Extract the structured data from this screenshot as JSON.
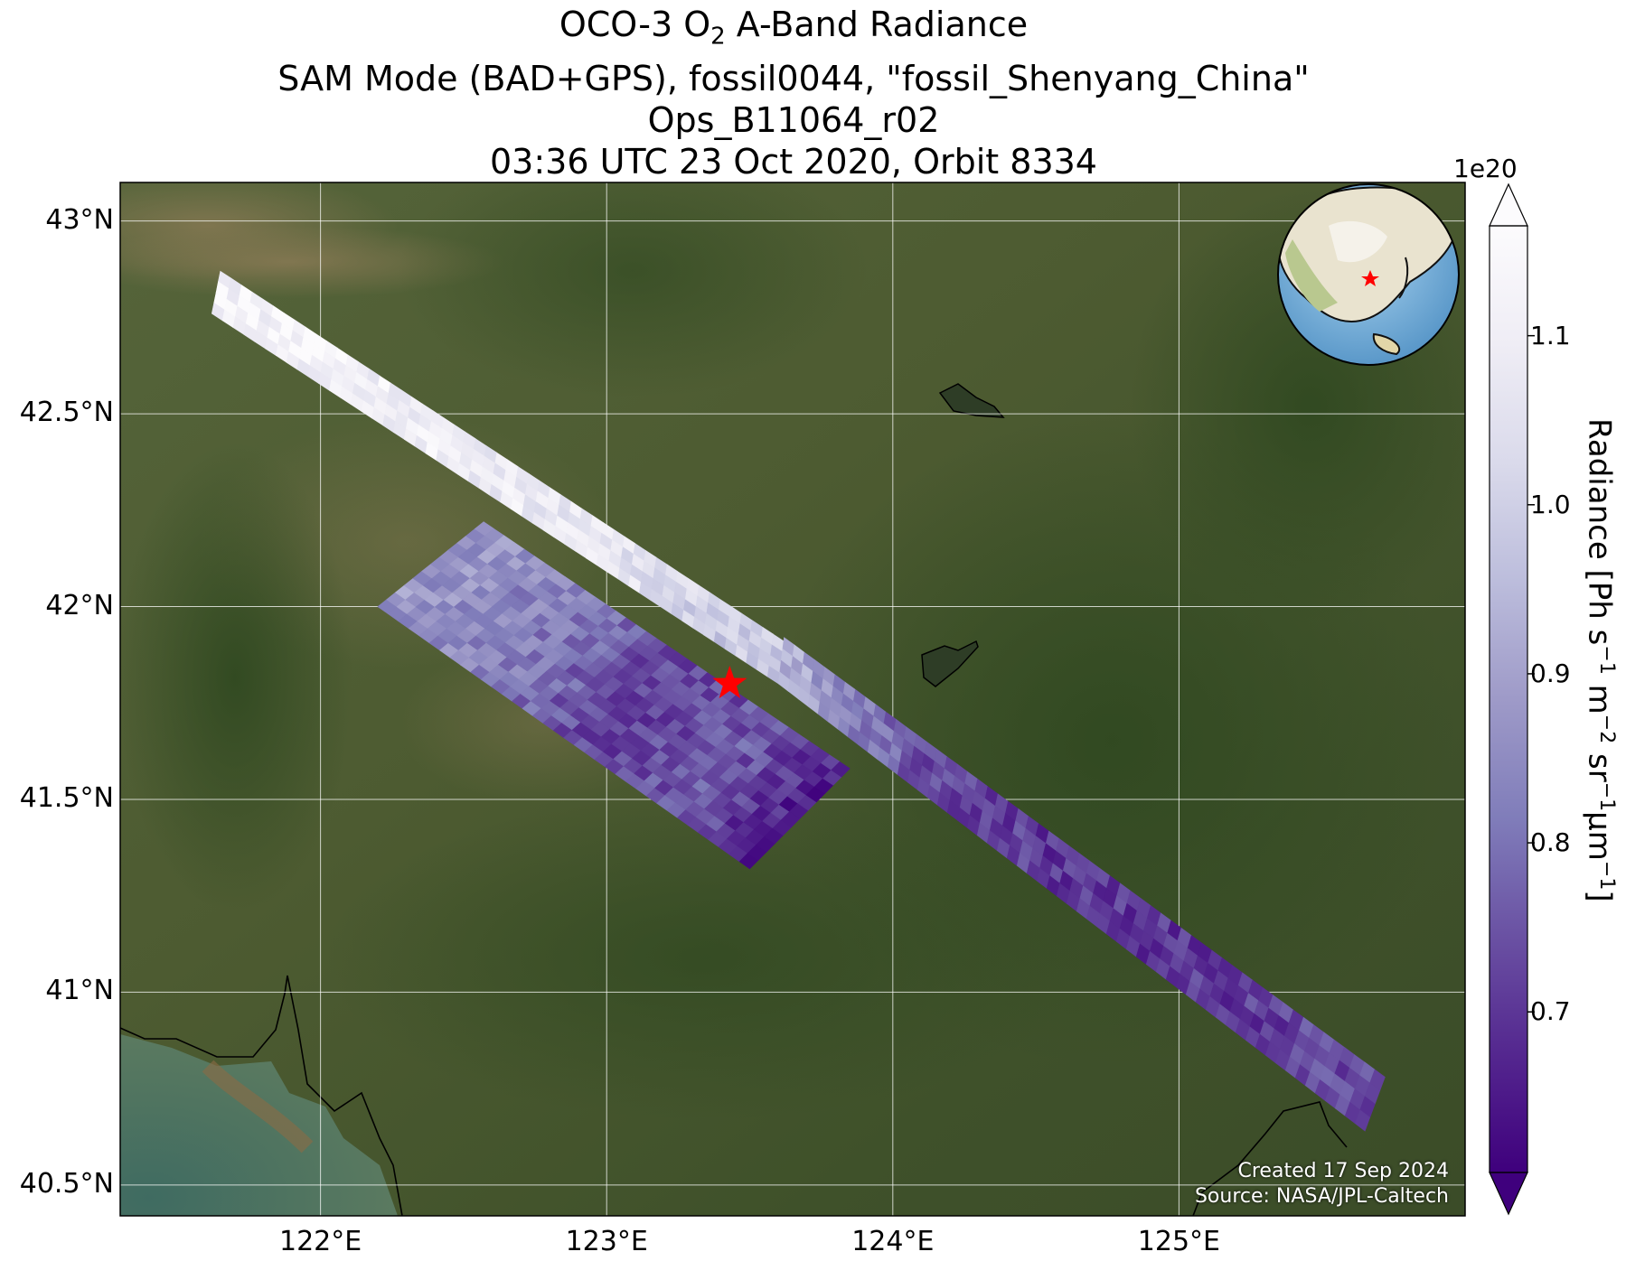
{
  "title": {
    "line1_pre": "OCO-3 O",
    "line1_sub": "2",
    "line1_post": " A-Band Radiance",
    "line2": "SAM Mode (BAD+GPS), fossil0044, \"fossil_Shenyang_China\"",
    "line3": "Ops_B11064_r02",
    "line4": "03:36 UTC 23 Oct 2020, Orbit 8334"
  },
  "map": {
    "lon_range": [
      121.3,
      126.0
    ],
    "lat_range": [
      40.42,
      43.1
    ],
    "lat_ticks": [
      {
        "value": 43.0,
        "label": "43°N"
      },
      {
        "value": 42.5,
        "label": "42.5°N"
      },
      {
        "value": 42.0,
        "label": "42°N"
      },
      {
        "value": 41.5,
        "label": "41.5°N"
      },
      {
        "value": 41.0,
        "label": "41°N"
      },
      {
        "value": 40.5,
        "label": "40.5°N"
      }
    ],
    "lon_ticks": [
      {
        "value": 122,
        "label": "122°E"
      },
      {
        "value": 123,
        "label": "123°E"
      },
      {
        "value": 124,
        "label": "124°E"
      },
      {
        "value": 125,
        "label": "125°E"
      }
    ],
    "gridlines": true,
    "basemap": "satellite imagery",
    "target_marker": {
      "lon": 123.43,
      "lat": 41.8,
      "symbol": "star-icon",
      "color": "#ff0000"
    },
    "inset_globe": {
      "position": "top-right",
      "marker_color": "#ff0000"
    }
  },
  "colorbar": {
    "exponent": "1e20",
    "range": [
      0.605,
      1.165
    ],
    "extend": "both",
    "colormap": "Purples_r",
    "ticks": [
      {
        "value": 1.1,
        "label": "1.1"
      },
      {
        "value": 1.0,
        "label": "1.0"
      },
      {
        "value": 0.9,
        "label": "0.9"
      },
      {
        "value": 0.8,
        "label": "0.8"
      },
      {
        "value": 0.7,
        "label": "0.7"
      }
    ],
    "label": {
      "p1": "Radiance [Ph s",
      "s1": "−1",
      "p2": " m",
      "s2": "−2",
      "p3": " sr",
      "s3": "−1",
      "p4": "μm",
      "s4": "−1",
      "p5": "]"
    }
  },
  "chart_data": {
    "type": "heatmap",
    "description_free": true,
    "value_units_multiplier": "1e20",
    "swaths": [
      {
        "corners": [
          [
            121.65,
            42.87
          ],
          [
            121.62,
            42.76
          ],
          [
            123.6,
            41.8
          ],
          [
            123.62,
            41.91
          ]
        ],
        "value_profile": [
          [
            0.0,
            1.13
          ],
          [
            0.45,
            1.1
          ],
          [
            0.72,
            1.07
          ],
          [
            0.87,
            1.0
          ],
          [
            1.0,
            0.98
          ]
        ]
      },
      {
        "corners": [
          [
            123.62,
            41.92
          ],
          [
            123.6,
            41.8
          ],
          [
            125.65,
            40.64
          ],
          [
            125.72,
            40.78
          ]
        ],
        "value_profile": [
          [
            0.0,
            0.95
          ],
          [
            0.1,
            0.85
          ],
          [
            0.25,
            0.74
          ],
          [
            0.45,
            0.7
          ],
          [
            0.7,
            0.7
          ],
          [
            1.0,
            0.74
          ]
        ]
      },
      {
        "corners": [
          [
            122.2,
            42.0
          ],
          [
            122.57,
            42.22
          ],
          [
            123.85,
            41.58
          ],
          [
            123.5,
            41.32
          ]
        ],
        "value_profile": [
          [
            0.0,
            0.88
          ],
          [
            0.3,
            0.82
          ],
          [
            0.55,
            0.72
          ],
          [
            0.8,
            0.76
          ],
          [
            1.0,
            0.65
          ]
        ]
      }
    ]
  },
  "credits": {
    "created": "Created 17 Sep 2024",
    "source": "Source: NASA/JPL-Caltech"
  }
}
